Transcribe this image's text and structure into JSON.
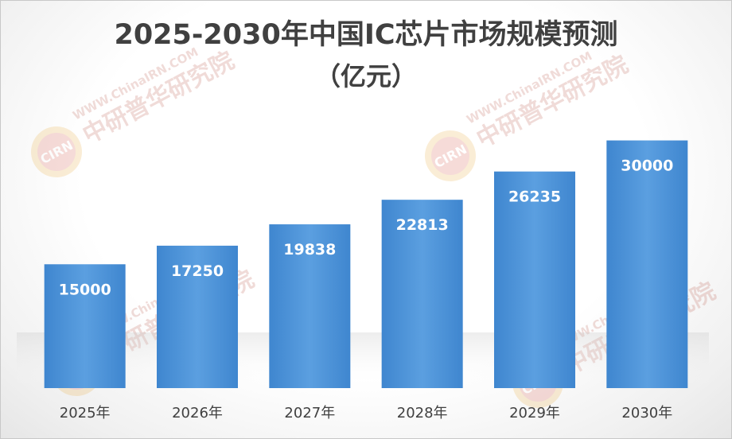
{
  "chart_data": {
    "type": "bar",
    "title": "2025-2030年中国IC芯片市场规模预测",
    "subtitle": "（亿元）",
    "categories": [
      "2025年",
      "2026年",
      "2027年",
      "2028年",
      "2029年",
      "2030年"
    ],
    "values": [
      15000,
      17250,
      19838,
      22813,
      26235,
      30000
    ],
    "value_labels": [
      "15000",
      "17250",
      "19838",
      "22813",
      "26235",
      "30000"
    ],
    "xlabel": "",
    "ylabel": "",
    "ylim": [
      0,
      31500
    ],
    "grid": false,
    "legend": "none",
    "bar_color": "#4a8fd4",
    "bar_color_light": "#5a9fe0"
  },
  "watermark": {
    "logo_text": "CIRN",
    "url_text": "WWW.ChinaIRN.COM",
    "name_text": "中研普华研究院"
  }
}
